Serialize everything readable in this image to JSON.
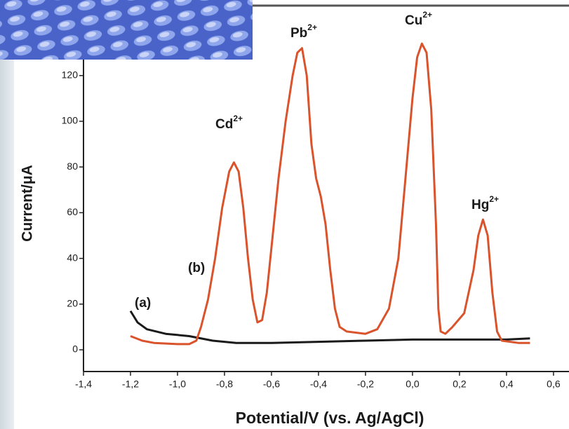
{
  "chart_data": {
    "type": "line",
    "x_label": "Potential/V (vs. Ag/AgCl)",
    "y_label": "Current/μA",
    "xlim": [
      -1.4,
      0.66
    ],
    "ylim": [
      -9.5,
      150
    ],
    "xticks": [
      {
        "value": -1.4,
        "label": "-1,4"
      },
      {
        "value": -1.2,
        "label": "-1,2"
      },
      {
        "value": -1.0,
        "label": "-1,0"
      },
      {
        "value": -0.8,
        "label": "-0,8"
      },
      {
        "value": -0.6,
        "label": "-0,6"
      },
      {
        "value": -0.4,
        "label": "-0,4"
      },
      {
        "value": -0.2,
        "label": "-0,2"
      },
      {
        "value": 0,
        "label": "0,0"
      },
      {
        "value": 0.2,
        "label": "0,2"
      },
      {
        "value": 0.4,
        "label": "0,4"
      },
      {
        "value": 0.6,
        "label": "0,6"
      }
    ],
    "yticks": [
      0,
      20,
      40,
      60,
      80,
      100,
      120
    ],
    "annotations": [
      {
        "label": "Cd",
        "sup": "2+"
      },
      {
        "label": "Pb",
        "sup": "2+"
      },
      {
        "label": "Cu",
        "sup": "2+"
      },
      {
        "label": "Hg",
        "sup": "2+"
      }
    ],
    "series": [
      {
        "name": "(a)",
        "color": "#1a1a1a",
        "x": [
          -1.2,
          -1.17,
          -1.13,
          -1.05,
          -0.95,
          -0.85,
          -0.75,
          -0.6,
          -0.4,
          -0.2,
          0.0,
          0.2,
          0.4,
          0.5
        ],
        "values": [
          17,
          12,
          9,
          7,
          6,
          4,
          3,
          3,
          3.5,
          4,
          4.5,
          4.5,
          4.5,
          5
        ]
      },
      {
        "name": "(b)",
        "color": "#d9542c",
        "x": [
          -1.2,
          -1.15,
          -1.1,
          -1.0,
          -0.95,
          -0.92,
          -0.9,
          -0.87,
          -0.84,
          -0.81,
          -0.78,
          -0.76,
          -0.74,
          -0.72,
          -0.7,
          -0.68,
          -0.66,
          -0.64,
          -0.62,
          -0.6,
          -0.57,
          -0.54,
          -0.51,
          -0.49,
          -0.47,
          -0.45,
          -0.43,
          -0.41,
          -0.39,
          -0.37,
          -0.35,
          -0.33,
          -0.31,
          -0.28,
          -0.2,
          -0.15,
          -0.1,
          -0.06,
          -0.03,
          0.0,
          0.02,
          0.04,
          0.06,
          0.08,
          0.1,
          0.11,
          0.12,
          0.14,
          0.17,
          0.22,
          0.26,
          0.28,
          0.3,
          0.32,
          0.34,
          0.36,
          0.38,
          0.45,
          0.5
        ],
        "values": [
          6,
          4,
          3,
          2.5,
          2.5,
          4,
          10,
          22,
          40,
          62,
          78,
          82,
          78,
          62,
          40,
          22,
          12,
          13,
          25,
          45,
          75,
          100,
          120,
          130,
          132,
          120,
          90,
          75,
          67,
          55,
          35,
          18,
          10,
          8,
          7,
          9,
          18,
          40,
          75,
          110,
          128,
          134,
          130,
          105,
          55,
          18,
          8,
          7,
          10,
          16,
          35,
          50,
          57,
          50,
          25,
          8,
          4,
          3,
          3
        ]
      }
    ]
  }
}
